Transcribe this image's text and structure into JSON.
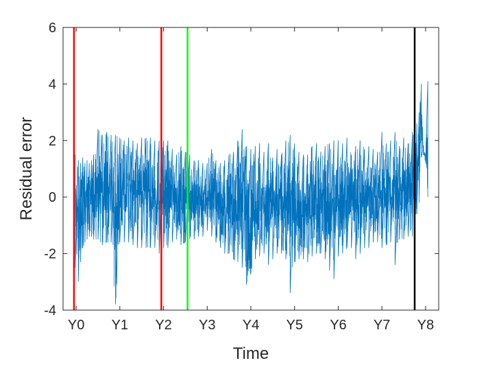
{
  "chart_data": {
    "type": "line",
    "title": "",
    "xlabel": "Time",
    "ylabel": "Residual error",
    "xlim": [
      -0.3,
      8.3
    ],
    "ylim": [
      -4,
      6
    ],
    "x_ticks": [
      0,
      1,
      2,
      3,
      4,
      5,
      6,
      7,
      8
    ],
    "x_tick_labels": [
      "Y0",
      "Y1",
      "Y2",
      "Y3",
      "Y4",
      "Y5",
      "Y6",
      "Y7",
      "Y8"
    ],
    "y_ticks": [
      -4,
      -2,
      0,
      2,
      4,
      6
    ],
    "y_tick_labels": [
      "-4",
      "-2",
      "0",
      "2",
      "4",
      "6"
    ],
    "grid": false,
    "legend": "none",
    "series": [
      {
        "color": "#0072BD",
        "x": [
          -0.02,
          0.05,
          0.1,
          0.15,
          0.2,
          0.25,
          0.3,
          0.35,
          0.4,
          0.5,
          0.6,
          0.7,
          0.8,
          0.9,
          1.0,
          1.1,
          1.2,
          1.3,
          1.4,
          1.5,
          1.6,
          1.7,
          1.8,
          1.9,
          2.0,
          2.1,
          2.2,
          2.3,
          2.4,
          2.5,
          2.6,
          2.7,
          2.8,
          2.9,
          3.0,
          3.1,
          3.2,
          3.3,
          3.4,
          3.5,
          3.6,
          3.7,
          3.8,
          3.9,
          4.0,
          4.1,
          4.2,
          4.3,
          4.4,
          4.5,
          4.6,
          4.7,
          4.8,
          4.9,
          5.0,
          5.1,
          5.2,
          5.3,
          5.4,
          5.5,
          5.6,
          5.7,
          5.8,
          5.9,
          6.0,
          6.1,
          6.2,
          6.3,
          6.4,
          6.5,
          6.6,
          6.7,
          6.8,
          6.9,
          7.0,
          7.1,
          7.2,
          7.3,
          7.4,
          7.5,
          7.6,
          7.7,
          7.75,
          7.8,
          7.85,
          7.9,
          7.95,
          8.0,
          8.05
        ],
        "y_max": [
          1.5,
          1.3,
          1.2,
          1.4,
          1.2,
          1.3,
          1.2,
          1.3,
          1.5,
          2.4,
          2.2,
          2.3,
          2.2,
          2.2,
          2.1,
          2.0,
          2.1,
          2.0,
          1.9,
          2.1,
          2.1,
          2.1,
          2.0,
          2.0,
          2.0,
          2.0,
          1.7,
          1.5,
          1.8,
          1.6,
          1.5,
          1.3,
          1.3,
          1.2,
          1.2,
          1.7,
          1.3,
          1.2,
          1.3,
          1.5,
          1.6,
          2.0,
          2.4,
          1.8,
          1.7,
          1.8,
          1.9,
          1.6,
          1.9,
          1.4,
          1.7,
          1.5,
          2.0,
          2.2,
          1.9,
          1.6,
          1.5,
          1.5,
          1.8,
          1.9,
          1.6,
          1.8,
          1.9,
          2.0,
          2.0,
          1.9,
          2.1,
          1.5,
          1.8,
          2.0,
          1.7,
          1.8,
          1.7,
          1.6,
          2.3,
          1.9,
          2.0,
          2.3,
          1.8,
          2.1,
          1.9,
          2.3,
          2.5,
          2.6,
          3.0,
          4.0,
          1.8,
          1.5,
          4.1
        ],
        "y_min": [
          -2.5,
          -3.0,
          -2.3,
          -1.8,
          -1.6,
          -1.5,
          -1.4,
          -1.4,
          -1.5,
          -1.5,
          -1.7,
          -1.6,
          -1.6,
          -3.8,
          -1.6,
          -1.6,
          -1.6,
          -1.7,
          -1.8,
          -1.8,
          -1.8,
          -1.8,
          -1.8,
          -2.0,
          -1.8,
          -1.8,
          -1.6,
          -1.5,
          -1.7,
          -1.6,
          -1.5,
          -1.5,
          -1.4,
          -1.4,
          -1.2,
          -1.4,
          -1.6,
          -1.8,
          -2.0,
          -2.0,
          -2.2,
          -2.3,
          -2.5,
          -3.1,
          -2.7,
          -2.2,
          -2.1,
          -2.0,
          -2.4,
          -2.2,
          -2.0,
          -2.0,
          -2.2,
          -3.4,
          -2.3,
          -2.2,
          -2.2,
          -2.3,
          -2.1,
          -2.0,
          -2.0,
          -2.2,
          -2.6,
          -2.9,
          -2.1,
          -2.0,
          -1.8,
          -1.8,
          -2.2,
          -2.0,
          -1.8,
          -1.8,
          -1.6,
          -1.6,
          -1.8,
          -1.7,
          -1.6,
          -2.4,
          -1.5,
          -1.5,
          -1.4,
          -1.4,
          -1.3,
          -0.6,
          -0.2,
          1.4,
          1.5,
          1.2,
          0.0
        ]
      }
    ],
    "vlines": [
      {
        "x": -0.05,
        "color": "#FF0000"
      },
      {
        "x": 1.95,
        "color": "#FF0000"
      },
      {
        "x": 2.55,
        "color": "#00FF00"
      },
      {
        "x": 7.75,
        "color": "#000000"
      }
    ]
  }
}
